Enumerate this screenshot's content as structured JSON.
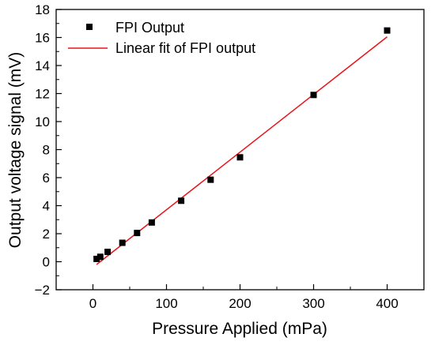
{
  "chart_data": {
    "type": "scatter",
    "title": "",
    "xlabel": "Pressure Applied (mPa)",
    "ylabel": "Output voltage signal (mV)",
    "xlim": [
      -50,
      450
    ],
    "ylim": [
      -2,
      18
    ],
    "x_ticks": [
      0,
      100,
      200,
      300,
      400
    ],
    "y_ticks": [
      -2,
      0,
      2,
      4,
      6,
      8,
      10,
      12,
      14,
      16,
      18
    ],
    "grid": false,
    "legend_position": "top-left",
    "series": [
      {
        "name": "FPI Output",
        "type": "scatter",
        "marker": "square",
        "color": "#000000",
        "x": [
          5,
          10,
          20,
          40,
          60,
          80,
          120,
          160,
          200,
          300,
          400
        ],
        "y": [
          0.2,
          0.35,
          0.7,
          1.35,
          2.05,
          2.8,
          4.35,
          5.85,
          7.45,
          11.9,
          16.5
        ]
      },
      {
        "name": "Linear fit of FPI output",
        "type": "line",
        "color": "#e8141a",
        "x": [
          5,
          400
        ],
        "y": [
          -0.2,
          16.05
        ]
      }
    ]
  }
}
